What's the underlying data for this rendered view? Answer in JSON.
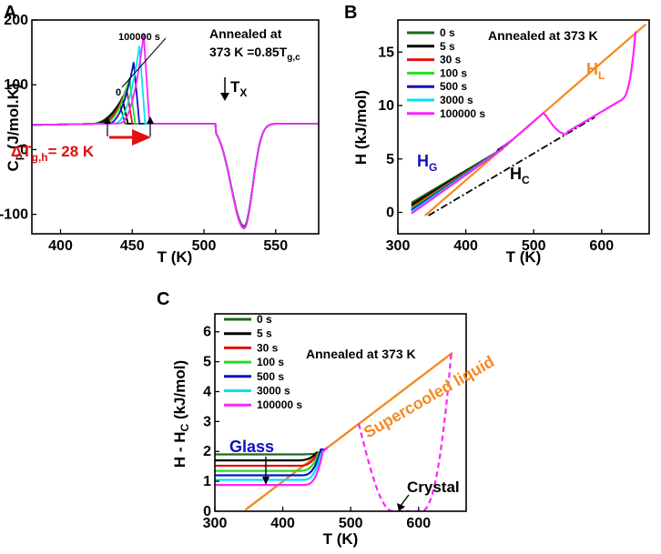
{
  "chart_data": [
    {
      "type": "line",
      "panel": "A",
      "xlabel": "T (K)",
      "ylabel": "C_p (J/mol.K)",
      "xlim": [
        380,
        580
      ],
      "ylim": [
        -130,
        200
      ],
      "xticks": [
        400,
        450,
        500,
        550
      ],
      "yticks": [
        -100,
        0,
        100,
        200
      ],
      "annotations": {
        "annealed_line1": "Annealed at",
        "annealed_line2": "373 K =0.85T",
        "annealed_sub": "g,c",
        "time_top": "100000 s",
        "time_bottom": "0",
        "tx_main": "T",
        "tx_sub": "X",
        "delta_main": "ΔT",
        "delta_sub": "g,h",
        "delta_value": "= 28 K"
      },
      "series": [
        {
          "name": "0 s",
          "color": "#1a6b1a",
          "peak_T": 441,
          "peak_Cp": 72
        },
        {
          "name": "5 s",
          "color": "#000000",
          "peak_T": 443,
          "peak_Cp": 80
        },
        {
          "name": "30 s",
          "color": "#e01010",
          "peak_T": 446,
          "peak_Cp": 95
        },
        {
          "name": "100 s",
          "color": "#22dd22",
          "peak_T": 448,
          "peak_Cp": 110
        },
        {
          "name": "500 s",
          "color": "#1010c0",
          "peak_T": 451,
          "peak_Cp": 135
        },
        {
          "name": "3000 s",
          "color": "#00e5ee",
          "peak_T": 455,
          "peak_Cp": 160
        },
        {
          "name": "100000 s",
          "color": "#ff22ff",
          "peak_T": 458,
          "peak_Cp": 178
        }
      ],
      "common": {
        "glass_Cp": 38,
        "liquid_Cp": 40,
        "cryst_onset_T": 508,
        "cryst_min_T": 528,
        "cryst_min_Cp": -118
      }
    },
    {
      "type": "line",
      "panel": "B",
      "xlabel": "T (K)",
      "ylabel": "H (kJ/mol)",
      "xlim": [
        300,
        670
      ],
      "ylim": [
        -2,
        18
      ],
      "xticks": [
        300,
        400,
        500,
        600
      ],
      "yticks": [
        0,
        5,
        10,
        15
      ],
      "legend_title": "Annealed at 373 K",
      "labels": {
        "HL_main": "H",
        "HL_sub": "L",
        "HG_main": "H",
        "HG_sub": "G",
        "HC_main": "H",
        "HC_sub": "C"
      },
      "HL": {
        "x": [
          340,
          665
        ],
        "y": [
          -0.3,
          17.6
        ],
        "color": "#f5891f"
      },
      "HC": {
        "x": [
          345,
          590
        ],
        "y": [
          -0.3,
          8.9
        ],
        "color": "#000000"
      },
      "series": [
        {
          "name": "0 s",
          "color": "#1a6b1a",
          "H_at_320": 0.9,
          "Tg": 462
        },
        {
          "name": "5 s",
          "color": "#000000",
          "H_at_320": 0.7,
          "Tg": 462
        },
        {
          "name": "30 s",
          "color": "#e01010",
          "H_at_320": 0.5,
          "Tg": 465
        },
        {
          "name": "100 s",
          "color": "#22dd22",
          "H_at_320": 0.35,
          "Tg": 467
        },
        {
          "name": "500 s",
          "color": "#1010c0",
          "H_at_320": 0.2,
          "Tg": 468
        },
        {
          "name": "3000 s",
          "color": "#00e5ee",
          "H_at_320": 0.05,
          "Tg": 469
        },
        {
          "name": "100000 s",
          "color": "#ff22ff",
          "H_at_320": -0.1,
          "Tg": 470
        }
      ]
    },
    {
      "type": "line",
      "panel": "C",
      "xlabel": "T (K)",
      "ylabel": "H - H_C (kJ/mol)",
      "xlim": [
        300,
        670
      ],
      "ylim": [
        0,
        6.6
      ],
      "xticks": [
        300,
        400,
        500,
        600
      ],
      "yticks": [
        0,
        1,
        2,
        3,
        4,
        5,
        6
      ],
      "legend_title": "Annealed at 373 K",
      "labels": {
        "supercooled": "Supercooled liquid",
        "glass": "Glass",
        "crystal": "Crystal"
      },
      "liquid": {
        "x": [
          345,
          650
        ],
        "y": [
          0.05,
          5.3
        ],
        "color": "#f5891f"
      },
      "series": [
        {
          "name": "0 s",
          "color": "#1a6b1a",
          "glass_value": 1.9
        },
        {
          "name": "5 s",
          "color": "#000000",
          "glass_value": 1.7
        },
        {
          "name": "30 s",
          "color": "#e01010",
          "glass_value": 1.52
        },
        {
          "name": "100 s",
          "color": "#22dd22",
          "glass_value": 1.35
        },
        {
          "name": "500 s",
          "color": "#1010c0",
          "glass_value": 1.2
        },
        {
          "name": "3000 s",
          "color": "#00e5ee",
          "glass_value": 1.05
        },
        {
          "name": "100000 s",
          "color": "#ff22ff",
          "glass_value": 0.88
        }
      ]
    }
  ],
  "panels": {
    "a": "A",
    "b": "B",
    "c": "C"
  }
}
